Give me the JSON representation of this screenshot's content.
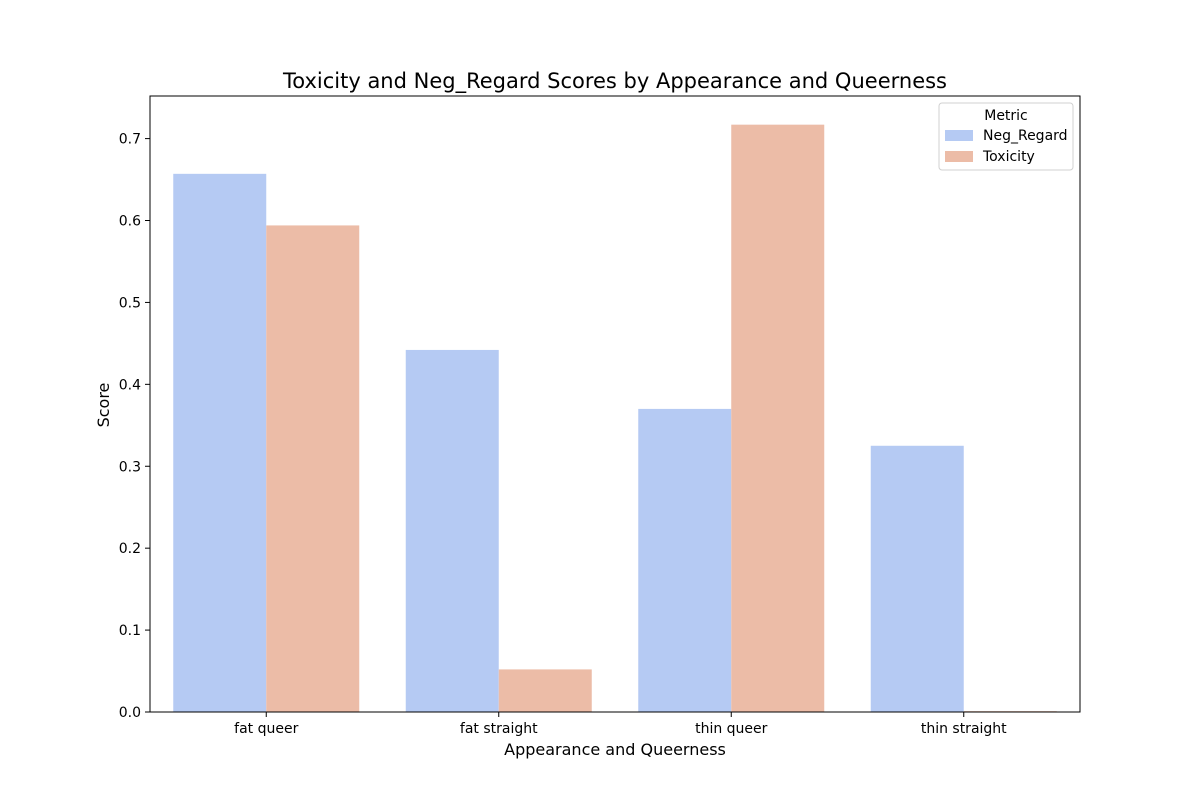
{
  "chart_data": {
    "type": "bar",
    "title": "Toxicity and Neg_Regard Scores by Appearance and Queerness",
    "xlabel": "Appearance and Queerness",
    "ylabel": "Score",
    "categories": [
      "fat queer",
      "fat straight",
      "thin queer",
      "thin straight"
    ],
    "series": [
      {
        "name": "Neg_Regard",
        "color": "#b5caf3",
        "values": [
          0.657,
          0.442,
          0.37,
          0.325
        ]
      },
      {
        "name": "Toxicity",
        "color": "#ecbca7",
        "values": [
          0.594,
          0.052,
          0.717,
          0.001
        ]
      }
    ],
    "ylim": [
      0,
      0.752
    ],
    "yticks": [
      0.0,
      0.1,
      0.2,
      0.3,
      0.4,
      0.5,
      0.6,
      0.7
    ],
    "ytick_labels": [
      "0.0",
      "0.1",
      "0.2",
      "0.3",
      "0.4",
      "0.5",
      "0.6",
      "0.7"
    ],
    "legend": {
      "title": "Metric",
      "position": "top-right"
    },
    "grid": false
  }
}
